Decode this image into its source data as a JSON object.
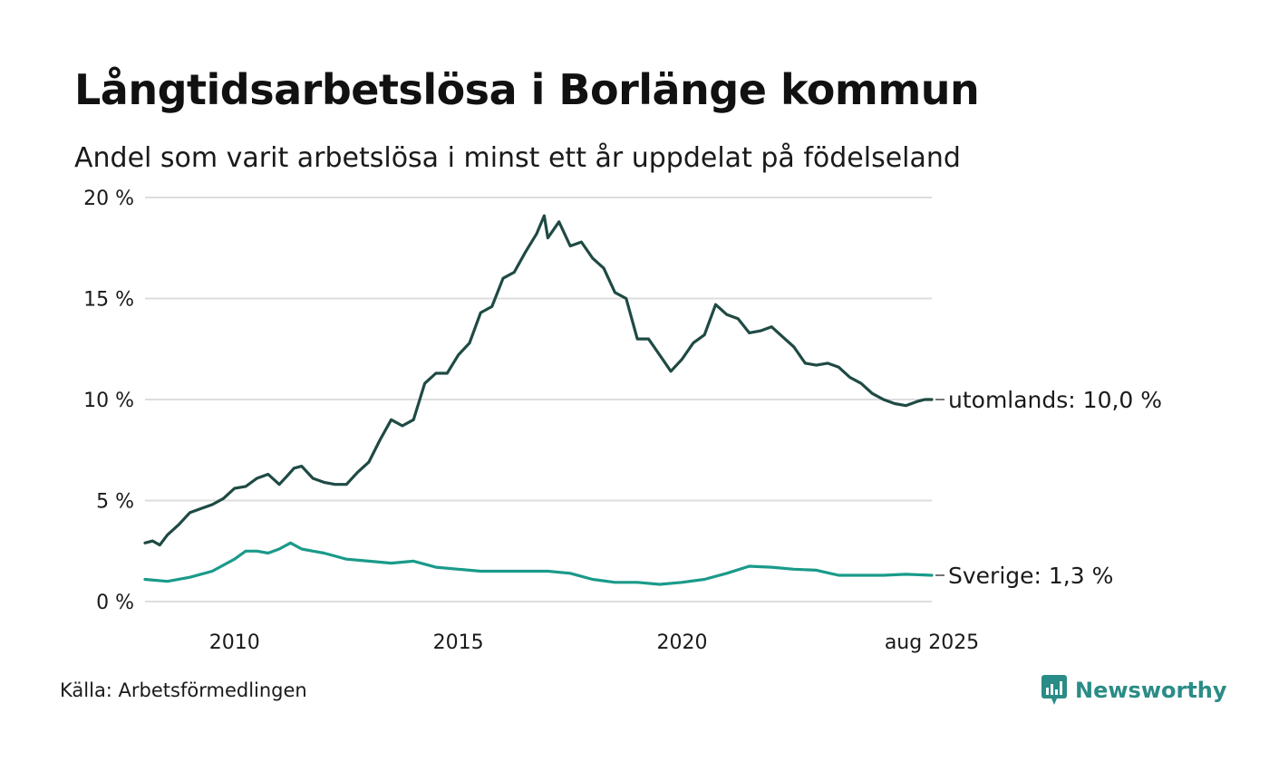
{
  "title": "Långtidsarbetslösa i Borlänge kommun",
  "subtitle": "Andel som varit arbetslösa i minst ett år uppdelat på födelseland",
  "source": "Källa: Arbetsförmedlingen",
  "brand": "Newsworthy",
  "colors": {
    "utomlands": "#1f4a44",
    "sverige": "#1a9a8a",
    "grid": "#dddddd",
    "brand": "#2a8c86"
  },
  "chart_data": {
    "type": "line",
    "ylim": [
      0,
      20
    ],
    "xlim": [
      2008.0,
      2025.58
    ],
    "yticks": [
      {
        "value": 0,
        "label": "0 %"
      },
      {
        "value": 5,
        "label": "5 %"
      },
      {
        "value": 10,
        "label": "10 %"
      },
      {
        "value": 15,
        "label": "15 %"
      },
      {
        "value": 20,
        "label": "20 %"
      }
    ],
    "xticks": [
      {
        "value": 2010,
        "label": "2010"
      },
      {
        "value": 2015,
        "label": "2015"
      },
      {
        "value": 2020,
        "label": "2020"
      },
      {
        "value": 2025.58,
        "label": "aug 2025"
      }
    ],
    "grid": true,
    "series": [
      {
        "key": "utomlands",
        "end_label": "utomlands: 10,0 %",
        "x": [
          2008.0,
          2008.17,
          2008.33,
          2008.5,
          2008.75,
          2009.0,
          2009.25,
          2009.5,
          2009.75,
          2010.0,
          2010.25,
          2010.5,
          2010.75,
          2011.0,
          2011.17,
          2011.33,
          2011.5,
          2011.75,
          2012.0,
          2012.25,
          2012.5,
          2012.75,
          2013.0,
          2013.25,
          2013.5,
          2013.75,
          2014.0,
          2014.25,
          2014.5,
          2014.75,
          2015.0,
          2015.25,
          2015.5,
          2015.75,
          2016.0,
          2016.25,
          2016.5,
          2016.75,
          2016.92,
          2017.0,
          2017.25,
          2017.5,
          2017.75,
          2018.0,
          2018.25,
          2018.5,
          2018.75,
          2019.0,
          2019.25,
          2019.5,
          2019.75,
          2020.0,
          2020.25,
          2020.5,
          2020.75,
          2021.0,
          2021.25,
          2021.5,
          2021.75,
          2022.0,
          2022.25,
          2022.5,
          2022.75,
          2023.0,
          2023.25,
          2023.5,
          2023.75,
          2024.0,
          2024.25,
          2024.5,
          2024.75,
          2025.0,
          2025.25,
          2025.42,
          2025.58
        ],
        "values": [
          2.9,
          3.0,
          2.8,
          3.3,
          3.8,
          4.4,
          4.6,
          4.8,
          5.1,
          5.6,
          5.7,
          6.1,
          6.3,
          5.8,
          6.2,
          6.6,
          6.7,
          6.1,
          5.9,
          5.8,
          5.8,
          6.4,
          6.9,
          8.0,
          9.0,
          8.7,
          9.0,
          10.8,
          11.3,
          11.3,
          12.2,
          12.8,
          14.3,
          14.6,
          16.0,
          16.3,
          17.3,
          18.2,
          19.1,
          18.0,
          18.8,
          17.6,
          17.8,
          17.0,
          16.5,
          15.3,
          15.0,
          13.0,
          13.0,
          12.2,
          11.4,
          12.0,
          12.8,
          13.2,
          14.7,
          14.2,
          14.0,
          13.3,
          13.4,
          13.6,
          13.1,
          12.6,
          11.8,
          11.7,
          11.8,
          11.6,
          11.1,
          10.8,
          10.3,
          10.0,
          9.8,
          9.7,
          9.9,
          10.0,
          10.0
        ]
      },
      {
        "key": "sverige",
        "end_label": "Sverige:  1,3 %",
        "x": [
          2008.0,
          2008.5,
          2009.0,
          2009.5,
          2010.0,
          2010.25,
          2010.5,
          2010.75,
          2011.0,
          2011.25,
          2011.5,
          2011.75,
          2012.0,
          2012.5,
          2013.0,
          2013.5,
          2014.0,
          2014.5,
          2015.0,
          2015.5,
          2016.0,
          2016.5,
          2017.0,
          2017.5,
          2018.0,
          2018.5,
          2019.0,
          2019.5,
          2020.0,
          2020.5,
          2021.0,
          2021.5,
          2022.0,
          2022.5,
          2023.0,
          2023.5,
          2024.0,
          2024.5,
          2025.0,
          2025.58
        ],
        "values": [
          1.1,
          1.0,
          1.2,
          1.5,
          2.1,
          2.5,
          2.5,
          2.4,
          2.6,
          2.9,
          2.6,
          2.5,
          2.4,
          2.1,
          2.0,
          1.9,
          2.0,
          1.7,
          1.6,
          1.5,
          1.5,
          1.5,
          1.5,
          1.4,
          1.1,
          0.95,
          0.95,
          0.85,
          0.95,
          1.1,
          1.4,
          1.75,
          1.7,
          1.6,
          1.55,
          1.3,
          1.3,
          1.3,
          1.35,
          1.3
        ]
      }
    ]
  }
}
